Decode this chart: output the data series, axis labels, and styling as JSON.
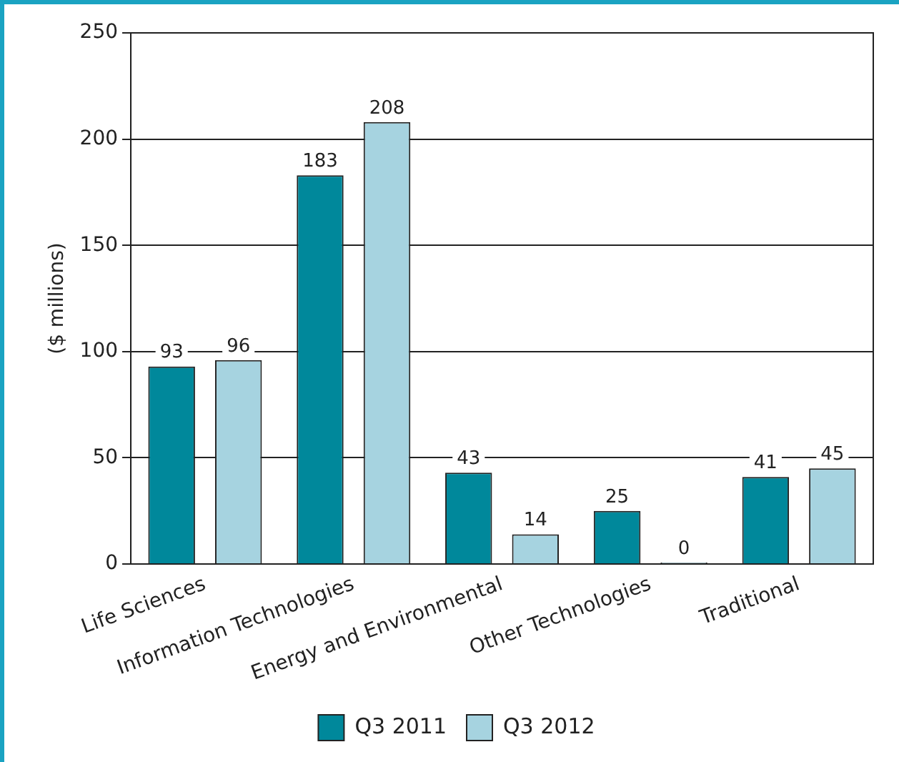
{
  "chart_data": {
    "type": "bar",
    "ylabel": "($ millions)",
    "categories": [
      "Life Sciences",
      "Information Technologies",
      "Energy and Environmental",
      "Other Technologies",
      "Traditional"
    ],
    "series": [
      {
        "name": "Q3 2011",
        "color": "#00889b",
        "values": [
          93,
          183,
          43,
          25,
          41
        ]
      },
      {
        "name": "Q3 2012",
        "color": "#a6d3e0",
        "values": [
          96,
          208,
          14,
          0,
          45
        ]
      }
    ],
    "ylim": [
      0,
      250
    ],
    "yticks": [
      0,
      50,
      100,
      150,
      200,
      250
    ],
    "grid": "y",
    "legend": "bottom",
    "data_labels": true
  }
}
